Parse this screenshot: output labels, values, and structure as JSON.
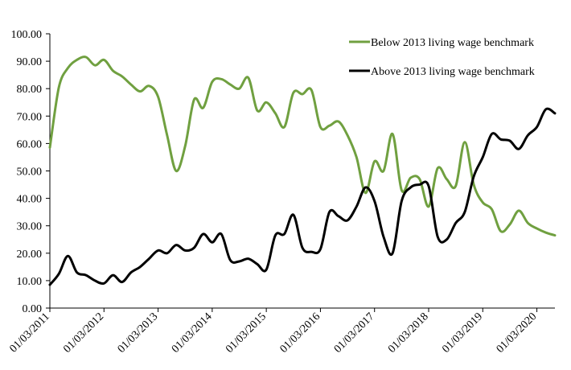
{
  "chart_data": {
    "type": "line",
    "title": "",
    "xlabel": "",
    "ylabel": "",
    "ylim": [
      0,
      100
    ],
    "y_ticks": [
      "0.00",
      "10.00",
      "20.00",
      "30.00",
      "40.00",
      "50.00",
      "60.00",
      "70.00",
      "80.00",
      "90.00",
      "100.00"
    ],
    "x_ticks": [
      "01/03/2011",
      "01/03/2012",
      "01/03/2013",
      "01/03/2014",
      "01/03/2015",
      "01/03/2016",
      "01/03/2017",
      "01/03/2018",
      "01/03/2019",
      "01/03/2020"
    ],
    "x_range": [
      "2011-03",
      "2020-07"
    ],
    "grid": false,
    "legend_placement": "top-right",
    "x": [
      "2011-03",
      "2011-05",
      "2011-07",
      "2011-09",
      "2011-11",
      "2012-01",
      "2012-03",
      "2012-05",
      "2012-07",
      "2012-09",
      "2012-11",
      "2013-01",
      "2013-03",
      "2013-05",
      "2013-07",
      "2013-09",
      "2013-11",
      "2014-01",
      "2014-03",
      "2014-05",
      "2014-07",
      "2014-09",
      "2014-11",
      "2015-01",
      "2015-03",
      "2015-05",
      "2015-07",
      "2015-09",
      "2015-11",
      "2016-01",
      "2016-03",
      "2016-05",
      "2016-07",
      "2016-09",
      "2016-11",
      "2017-01",
      "2017-03",
      "2017-05",
      "2017-07",
      "2017-09",
      "2017-11",
      "2018-01",
      "2018-03",
      "2018-05",
      "2018-07",
      "2018-09",
      "2018-11",
      "2019-01",
      "2019-03",
      "2019-05",
      "2019-07",
      "2019-09",
      "2019-11",
      "2020-01",
      "2020-03",
      "2020-05",
      "2020-07"
    ],
    "series": [
      {
        "name": "Below 2013 living wage benchmark",
        "color": "#70a040",
        "values": [
          58.5,
          80.5,
          87.5,
          90.5,
          91.5,
          88.5,
          90.5,
          86.5,
          84.5,
          81.5,
          79.0,
          81.0,
          77.0,
          63.0,
          50.0,
          59.0,
          76.0,
          73.0,
          82.5,
          83.5,
          81.5,
          80.0,
          84.0,
          72.0,
          75.0,
          71.0,
          66.0,
          78.5,
          78.0,
          79.5,
          66.0,
          66.5,
          68.0,
          63.0,
          55.0,
          42.0,
          53.5,
          50.0,
          63.5,
          43.0,
          47.5,
          47.0,
          37.0,
          51.0,
          47.0,
          44.5,
          60.5,
          45.0,
          38.5,
          36.0,
          28.0,
          30.5,
          35.5,
          31.0,
          29.0,
          27.5,
          26.5
        ]
      },
      {
        "name": "Above 2013 living wage benchmark",
        "color": "#000000",
        "values": [
          8.5,
          12.5,
          19.0,
          13.0,
          12.0,
          10.0,
          9.0,
          12.0,
          9.5,
          13.0,
          15.0,
          18.0,
          21.0,
          20.0,
          23.0,
          21.0,
          22.0,
          27.0,
          24.0,
          27.0,
          17.5,
          17.0,
          18.0,
          16.0,
          14.0,
          26.5,
          27.0,
          34.0,
          22.0,
          20.5,
          21.5,
          35.0,
          33.5,
          32.0,
          37.0,
          44.0,
          39.0,
          26.0,
          20.0,
          39.0,
          44.0,
          45.0,
          44.5,
          26.0,
          25.0,
          31.0,
          35.0,
          48.0,
          55.0,
          63.5,
          61.5,
          61.0,
          58.0,
          63.0,
          66.0,
          72.5,
          71.0
        ]
      }
    ]
  }
}
